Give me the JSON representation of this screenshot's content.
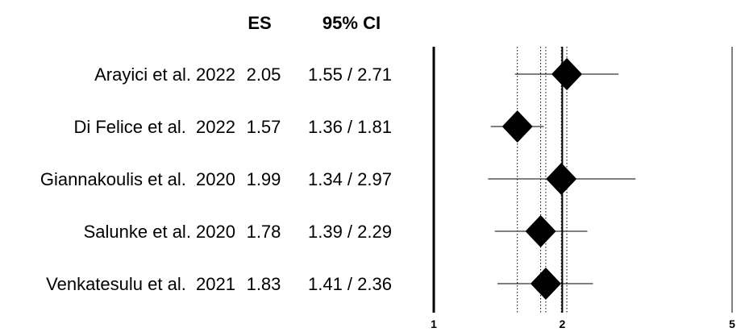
{
  "chart_data": {
    "type": "forest",
    "columns": {
      "es_header": "ES",
      "ci_header": "95% CI"
    },
    "studies": [
      {
        "label": "Arayici et al. 2022",
        "es": 2.05,
        "ci_low": 1.55,
        "ci_high": 2.71,
        "es_text": "2.05",
        "ci_text": "1.55 / 2.71"
      },
      {
        "label": "Di Felice et al.  2022",
        "es": 1.57,
        "ci_low": 1.36,
        "ci_high": 1.81,
        "es_text": "1.57",
        "ci_text": "1.36 / 1.81"
      },
      {
        "label": "Giannakoulis et al.  2020",
        "es": 1.99,
        "ci_low": 1.34,
        "ci_high": 2.97,
        "es_text": "1.99",
        "ci_text": "1.34 / 2.97"
      },
      {
        "label": "Salunke et al. 2020",
        "es": 1.78,
        "ci_low": 1.39,
        "ci_high": 2.29,
        "es_text": "1.78",
        "ci_text": "1.39 / 2.29"
      },
      {
        "label": "Venkatesulu et al.  2021",
        "es": 1.83,
        "ci_low": 1.41,
        "ci_high": 2.36,
        "es_text": "1.83",
        "ci_text": "1.41 / 2.36"
      }
    ],
    "x_scale": "log",
    "xlim": [
      1,
      5
    ],
    "x_ticks": [
      1,
      2,
      5
    ],
    "x_tick_labels": [
      "1",
      "2",
      "5"
    ],
    "reference_lines": [
      1.57,
      1.78,
      1.83,
      1.99,
      2.05
    ],
    "pooled_line": 2.0,
    "grid": false
  }
}
